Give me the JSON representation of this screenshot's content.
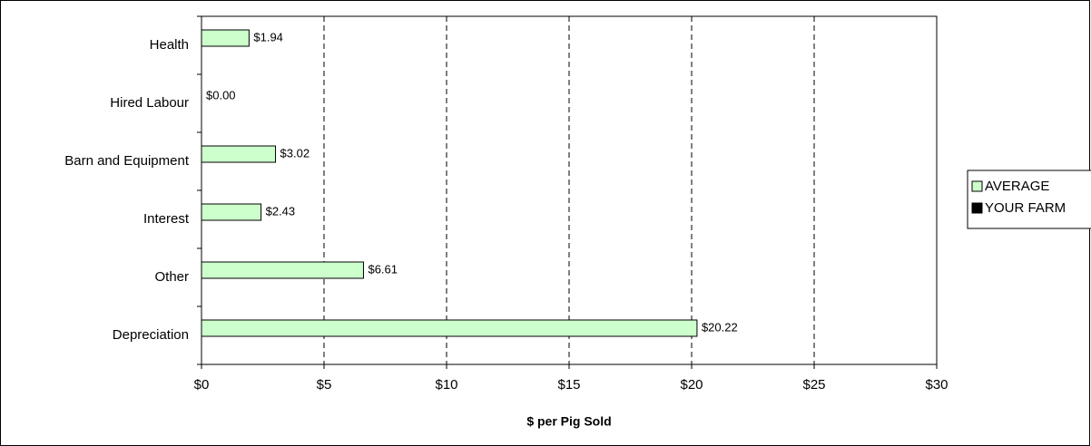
{
  "chart_data": {
    "type": "bar",
    "orientation": "horizontal",
    "x_label": "$ per Pig Sold",
    "categories": [
      "Health",
      "Hired Labour",
      "Barn and Equipment",
      "Interest",
      "Other",
      "Depreciation"
    ],
    "series": [
      {
        "name": "AVERAGE",
        "color": "#ccffcc",
        "values": [
          1.94,
          0,
          3.02,
          2.43,
          6.61,
          20.22
        ],
        "value_labels": [
          "$1.94",
          "$0.00",
          "$3.02",
          "$2.43",
          "$6.61",
          "$20.22"
        ]
      },
      {
        "name": "YOUR FARM",
        "color": "#000000",
        "values": [
          null,
          null,
          null,
          null,
          null,
          null
        ]
      }
    ],
    "xlim": [
      0,
      30
    ],
    "xticks": [
      {
        "value": 0,
        "label": "$0"
      },
      {
        "value": 5,
        "label": "$5"
      },
      {
        "value": 10,
        "label": "$10"
      },
      {
        "value": 15,
        "label": "$15"
      },
      {
        "value": 20,
        "label": "$20"
      },
      {
        "value": 25,
        "label": "$25"
      },
      {
        "value": 30,
        "label": "$30"
      }
    ],
    "grid": true,
    "legend": "right"
  }
}
